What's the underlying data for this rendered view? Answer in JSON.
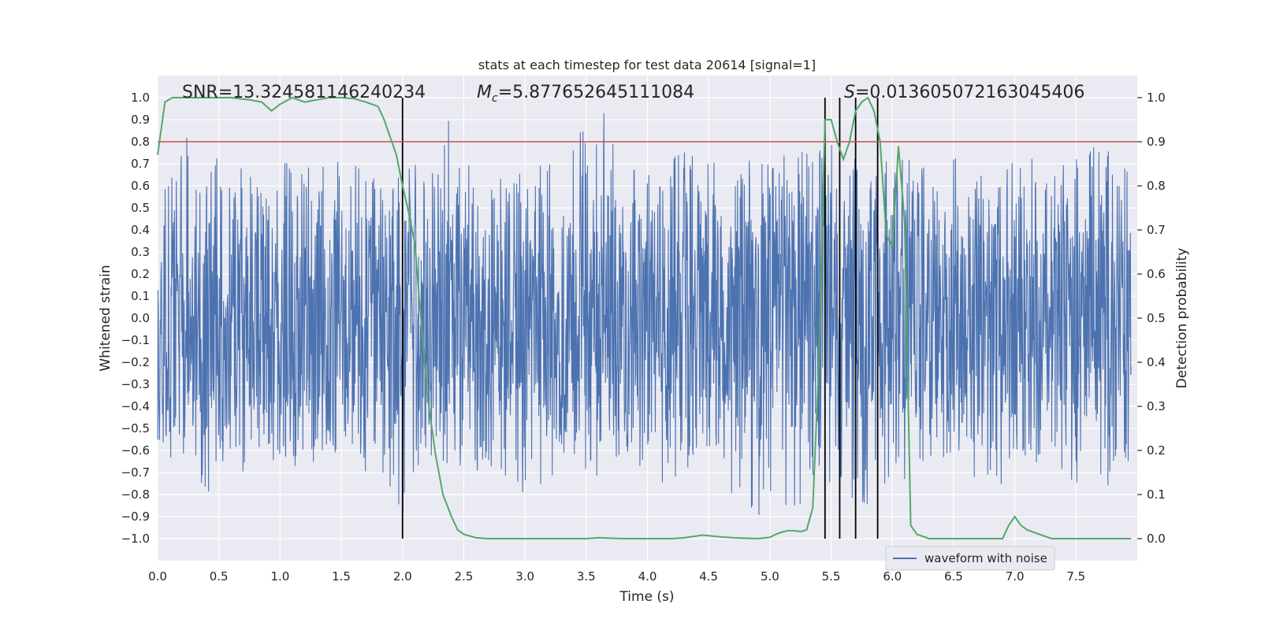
{
  "chart_data": {
    "type": "line",
    "title": "stats at each timestep for test data 20614 [signal=1]",
    "xlabel": "Time (s)",
    "ylabel": "Whitened strain",
    "y2label": "Detection probability",
    "xlim": [
      0.0,
      8.0
    ],
    "ylim": [
      -1.1,
      1.1
    ],
    "y2lim": [
      -0.05,
      1.05
    ],
    "x_ticks": [
      "0.0",
      "0.5",
      "1.0",
      "1.5",
      "2.0",
      "2.5",
      "3.0",
      "3.5",
      "4.0",
      "4.5",
      "5.0",
      "5.5",
      "6.0",
      "6.5",
      "7.0",
      "7.5"
    ],
    "x_tick_values": [
      0,
      0.5,
      1,
      1.5,
      2,
      2.5,
      3,
      3.5,
      4,
      4.5,
      5,
      5.5,
      6,
      6.5,
      7,
      7.5
    ],
    "y_ticks": [
      "1.0",
      "0.9",
      "0.8",
      "0.7",
      "0.6",
      "0.5",
      "0.4",
      "0.3",
      "0.2",
      "0.1",
      "0.0",
      "−0.1",
      "−0.2",
      "−0.3",
      "−0.4",
      "−0.5",
      "−0.6",
      "−0.7",
      "−0.8",
      "−0.9",
      "−1.0"
    ],
    "y_tick_values": [
      1.0,
      0.9,
      0.8,
      0.7,
      0.6,
      0.5,
      0.4,
      0.3,
      0.2,
      0.1,
      0.0,
      -0.1,
      -0.2,
      -0.3,
      -0.4,
      -0.5,
      -0.6,
      -0.7,
      -0.8,
      -0.9,
      -1.0
    ],
    "y2_ticks": [
      "1.0",
      "0.9",
      "0.8",
      "0.7",
      "0.6",
      "0.5",
      "0.4",
      "0.3",
      "0.2",
      "0.1",
      "0.0"
    ],
    "y2_tick_values": [
      1.0,
      0.9,
      0.8,
      0.7,
      0.6,
      0.5,
      0.4,
      0.3,
      0.2,
      0.1,
      0.0
    ],
    "threshold": {
      "value": 0.9,
      "axis": "y2",
      "color": "#c44e52"
    },
    "annotations": {
      "snr": "SNR=13.324581146240234",
      "mc_symbol": "M",
      "mc_sub": "c",
      "mc_value": "=5.877652645111084",
      "s_symbol": "S",
      "s_value": "=0.013605072163045406"
    },
    "vertical_lines": [
      2.0,
      5.45,
      5.57,
      5.7,
      5.88
    ],
    "series": [
      {
        "name": "waveform with noise",
        "color": "#4c72b0",
        "axis": "y",
        "description": "dense noisy whitened strain",
        "envelope_top_x": [
          0.0,
          0.05,
          0.1,
          0.15,
          0.2,
          0.25,
          0.3,
          0.4,
          0.5,
          0.6,
          0.7,
          0.8,
          0.9,
          1.0,
          1.1,
          1.2,
          1.3,
          1.4,
          1.5,
          1.6,
          1.7,
          1.8,
          1.9,
          2.0,
          2.05,
          2.1,
          2.2,
          2.35,
          2.5,
          2.6,
          2.8,
          3.0,
          3.2,
          3.4,
          3.6,
          3.8,
          4.0,
          4.2,
          4.4,
          4.6,
          4.8,
          5.0,
          5.2,
          5.4,
          5.5,
          5.6,
          5.8,
          6.0,
          6.2,
          6.4,
          6.6,
          6.8,
          7.0,
          7.2,
          7.4,
          7.6,
          7.8,
          7.95
        ],
        "envelope_top_y": [
          0.62,
          0.6,
          0.78,
          0.72,
          0.8,
          0.93,
          0.6,
          0.7,
          0.75,
          0.68,
          0.72,
          0.8,
          0.7,
          0.75,
          0.68,
          0.72,
          0.7,
          0.74,
          0.76,
          0.7,
          0.72,
          0.7,
          0.6,
          0.75,
          0.85,
          0.92,
          0.7,
          0.95,
          0.72,
          0.65,
          0.7,
          0.68,
          0.72,
          0.8,
          1.0,
          0.75,
          0.7,
          0.78,
          0.8,
          0.7,
          0.72,
          0.8,
          0.75,
          0.78,
          0.9,
          0.75,
          0.82,
          0.78,
          0.7,
          0.72,
          0.75,
          0.68,
          0.72,
          0.8,
          0.7,
          0.78,
          0.8,
          0.65
        ],
        "envelope_bottom_y": [
          -0.55,
          -0.6,
          -0.72,
          -0.65,
          -0.6,
          -0.8,
          -0.65,
          -0.86,
          -0.7,
          -0.65,
          -0.72,
          -0.7,
          -0.68,
          -0.75,
          -0.7,
          -0.65,
          -0.7,
          -0.6,
          -0.68,
          -0.72,
          -0.7,
          -0.65,
          -0.8,
          -0.93,
          -0.75,
          -0.7,
          -0.68,
          -0.8,
          -0.72,
          -0.7,
          -0.7,
          -0.83,
          -0.72,
          -0.7,
          -0.75,
          -0.72,
          -0.7,
          -0.8,
          -0.72,
          -0.68,
          -0.95,
          -0.85,
          -0.9,
          -0.75,
          -0.8,
          -0.85,
          -0.88,
          -0.8,
          -0.75,
          -0.7,
          -0.72,
          -0.8,
          -0.75,
          -0.7,
          -0.72,
          -0.85,
          -0.8,
          -0.65
        ]
      },
      {
        "name": "detection probability",
        "color": "#55a868",
        "axis": "y2",
        "x": [
          0.0,
          0.06,
          0.12,
          0.25,
          0.5,
          0.6,
          0.75,
          0.85,
          0.93,
          1.0,
          1.1,
          1.2,
          1.3,
          1.4,
          1.5,
          1.6,
          1.7,
          1.8,
          1.85,
          1.9,
          1.95,
          2.0,
          2.05,
          2.1,
          2.15,
          2.2,
          2.27,
          2.33,
          2.4,
          2.45,
          2.5,
          2.6,
          2.7,
          3.0,
          3.5,
          3.6,
          3.8,
          4.0,
          4.2,
          4.3,
          4.45,
          4.6,
          4.7,
          4.9,
          5.0,
          5.05,
          5.1,
          5.15,
          5.2,
          5.25,
          5.3,
          5.35,
          5.4,
          5.45,
          5.5,
          5.55,
          5.6,
          5.65,
          5.7,
          5.75,
          5.8,
          5.85,
          5.9,
          5.95,
          6.0,
          6.05,
          6.1,
          6.15,
          6.2,
          6.3,
          6.5,
          6.8,
          6.9,
          6.95,
          7.0,
          7.05,
          7.1,
          7.2,
          7.3,
          7.5,
          7.95
        ],
        "y": [
          0.87,
          0.99,
          1.0,
          1.0,
          1.0,
          1.0,
          0.995,
          0.99,
          0.97,
          0.985,
          1.0,
          0.99,
          0.995,
          1.0,
          1.0,
          0.998,
          0.99,
          0.98,
          0.95,
          0.91,
          0.87,
          0.8,
          0.74,
          0.67,
          0.5,
          0.33,
          0.19,
          0.1,
          0.05,
          0.02,
          0.01,
          0.002,
          0.0,
          0.0,
          0.0,
          0.002,
          0.0,
          0.0,
          0.0,
          0.002,
          0.008,
          0.004,
          0.002,
          0.0,
          0.003,
          0.01,
          0.015,
          0.018,
          0.018,
          0.016,
          0.02,
          0.07,
          0.4,
          0.95,
          0.95,
          0.9,
          0.86,
          0.9,
          0.97,
          0.99,
          1.0,
          0.97,
          0.9,
          0.69,
          0.66,
          0.89,
          0.72,
          0.03,
          0.01,
          0.0,
          0.0,
          0.0,
          0.0,
          0.03,
          0.05,
          0.03,
          0.02,
          0.01,
          0.0,
          0.0,
          0.0
        ]
      }
    ],
    "legend": {
      "label": "waveform with noise",
      "placement": "lower-right"
    }
  }
}
